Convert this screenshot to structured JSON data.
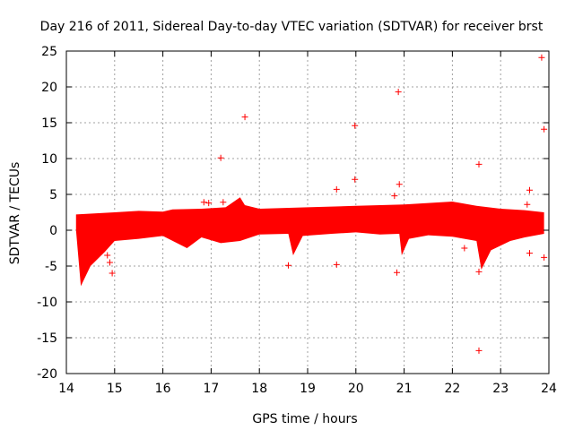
{
  "chart_data": {
    "type": "scatter",
    "title": "Day 216 of 2011, Sidereal Day-to-day VTEC variation (SDTVAR) for receiver brst",
    "xlabel": "GPS time / hours",
    "ylabel": "SDTVAR / TECUs",
    "xlim": [
      14,
      24
    ],
    "ylim": [
      -20,
      25
    ],
    "xticks": [
      14,
      15,
      16,
      17,
      18,
      19,
      20,
      21,
      22,
      23,
      24
    ],
    "yticks": [
      25,
      20,
      15,
      10,
      5,
      0,
      -5,
      -10,
      -15,
      -20
    ],
    "grid": true,
    "marker": "+",
    "color": "#ff0000",
    "dense_band": {
      "description": "dense cloud of + markers",
      "upper": [
        [
          14.2,
          2.2
        ],
        [
          15.0,
          2.5
        ],
        [
          15.5,
          2.7
        ],
        [
          16.0,
          2.6
        ],
        [
          16.2,
          2.9
        ],
        [
          16.8,
          3.0
        ],
        [
          17.3,
          3.2
        ],
        [
          17.6,
          4.6
        ],
        [
          17.7,
          3.5
        ],
        [
          18.0,
          3.0
        ],
        [
          19.0,
          3.2
        ],
        [
          20.0,
          3.4
        ],
        [
          21.0,
          3.6
        ],
        [
          21.5,
          3.8
        ],
        [
          22.0,
          4.0
        ],
        [
          22.5,
          3.4
        ],
        [
          23.0,
          3.0
        ],
        [
          23.5,
          2.8
        ],
        [
          23.9,
          2.5
        ]
      ],
      "lower": [
        [
          14.2,
          0.0
        ],
        [
          14.3,
          -7.8
        ],
        [
          14.5,
          -5.0
        ],
        [
          14.8,
          -3.0
        ],
        [
          15.0,
          -1.5
        ],
        [
          15.5,
          -1.2
        ],
        [
          16.0,
          -0.8
        ],
        [
          16.5,
          -2.5
        ],
        [
          16.8,
          -1.0
        ],
        [
          17.2,
          -1.8
        ],
        [
          17.6,
          -1.5
        ],
        [
          18.0,
          -0.6
        ],
        [
          18.6,
          -0.5
        ],
        [
          18.7,
          -3.5
        ],
        [
          18.9,
          -0.8
        ],
        [
          19.5,
          -0.5
        ],
        [
          20.0,
          -0.3
        ],
        [
          20.5,
          -0.6
        ],
        [
          20.9,
          -0.5
        ],
        [
          20.95,
          -3.5
        ],
        [
          21.1,
          -1.2
        ],
        [
          21.5,
          -0.7
        ],
        [
          22.0,
          -0.9
        ],
        [
          22.5,
          -1.5
        ],
        [
          22.6,
          -5.5
        ],
        [
          22.8,
          -2.8
        ],
        [
          23.2,
          -1.5
        ],
        [
          23.5,
          -1.0
        ],
        [
          23.9,
          -0.5
        ]
      ]
    },
    "outliers": [
      {
        "x": 23.85,
        "y": 24.1
      },
      {
        "x": 20.88,
        "y": 19.3
      },
      {
        "x": 17.7,
        "y": 15.8
      },
      {
        "x": 19.98,
        "y": 14.6
      },
      {
        "x": 23.9,
        "y": 14.1
      },
      {
        "x": 17.2,
        "y": 10.1
      },
      {
        "x": 22.55,
        "y": 9.2
      },
      {
        "x": 19.98,
        "y": 7.1
      },
      {
        "x": 20.9,
        "y": 6.4
      },
      {
        "x": 19.6,
        "y": 5.7
      },
      {
        "x": 23.6,
        "y": 5.6
      },
      {
        "x": 20.8,
        "y": 4.8
      },
      {
        "x": 16.85,
        "y": 3.9
      },
      {
        "x": 16.95,
        "y": 3.8
      },
      {
        "x": 17.25,
        "y": 3.9
      },
      {
        "x": 23.55,
        "y": 3.6
      },
      {
        "x": 22.25,
        "y": -2.5
      },
      {
        "x": 23.6,
        "y": -3.2
      },
      {
        "x": 23.9,
        "y": -3.8
      },
      {
        "x": 14.85,
        "y": -3.5
      },
      {
        "x": 14.9,
        "y": -4.5
      },
      {
        "x": 14.95,
        "y": -6.0
      },
      {
        "x": 18.6,
        "y": -4.9
      },
      {
        "x": 19.6,
        "y": -4.8
      },
      {
        "x": 20.85,
        "y": -5.9
      },
      {
        "x": 22.55,
        "y": -5.8
      },
      {
        "x": 22.55,
        "y": -16.8
      }
    ]
  }
}
